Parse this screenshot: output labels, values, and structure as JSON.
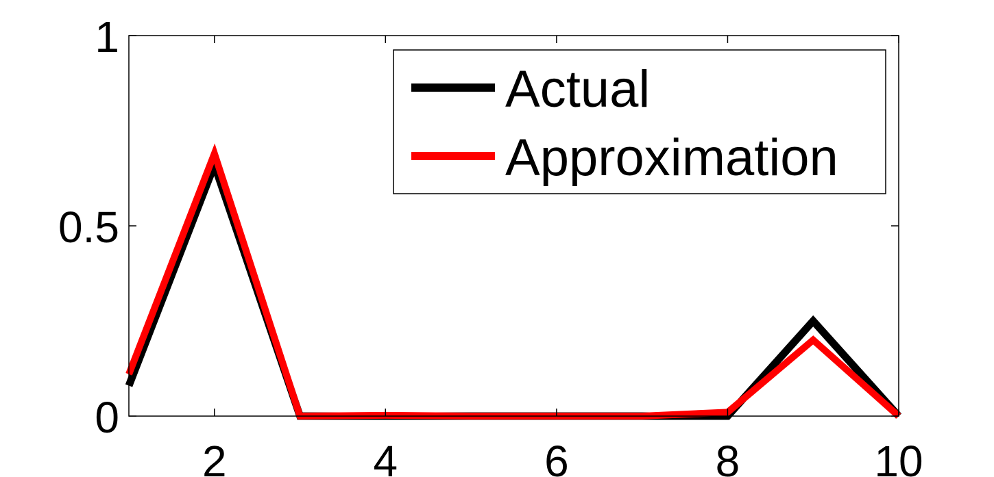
{
  "chart_data": {
    "type": "line",
    "title": "",
    "xlabel": "",
    "ylabel": "",
    "xlim": [
      1,
      10
    ],
    "ylim": [
      0,
      1
    ],
    "xticks": [
      2,
      4,
      6,
      8,
      10
    ],
    "xtick_labels": [
      "2",
      "4",
      "6",
      "8",
      "10"
    ],
    "yticks": [
      0,
      0.5,
      1
    ],
    "ytick_labels": [
      "0",
      "0.5",
      "1"
    ],
    "grid": false,
    "legend_position": "top-right",
    "x": [
      1,
      2,
      3,
      4,
      5,
      6,
      7,
      8,
      9,
      10
    ],
    "series": [
      {
        "name": "Actual",
        "color": "#000000",
        "values": [
          0.08,
          0.66,
          0.0,
          0.0,
          0.0,
          0.0,
          0.0,
          0.0,
          0.25,
          0.0
        ]
      },
      {
        "name": "Approximation",
        "color": "#ff0000",
        "values": [
          0.11,
          0.69,
          0.0,
          0.002,
          0.0,
          0.0,
          0.0,
          0.01,
          0.2,
          0.0
        ]
      }
    ]
  }
}
